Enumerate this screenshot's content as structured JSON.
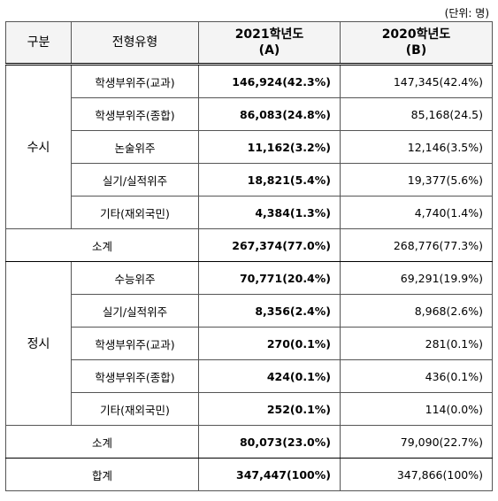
{
  "unit": "(단위: 명)",
  "table": {
    "header": {
      "category": "구분",
      "type": "전형유형",
      "col_a": [
        "2021학년도",
        "(A)"
      ],
      "col_b": [
        "2020학년도",
        "(B)"
      ]
    },
    "groups": [
      {
        "name": "수시",
        "rows": [
          {
            "type": "학생부위주(교과)",
            "a": "146,924(42.3%)",
            "b": "147,345(42.4%)"
          },
          {
            "type": "학생부위주(종합)",
            "a": "86,083(24.8%)",
            "b": "85,168(24.5)"
          },
          {
            "type": "논술위주",
            "a": "11,162(3.2%)",
            "b": "12,146(3.5%)"
          },
          {
            "type": "실기/실적위주",
            "a": "18,821(5.4%)",
            "b": "19,377(5.6%)"
          },
          {
            "type": "기타(재외국민)",
            "a": "4,384(1.3%)",
            "b": "4,740(1.4%)"
          }
        ],
        "subtotal": {
          "label": "소계",
          "a": "267,374(77.0%)",
          "b": "268,776(77.3%)"
        }
      },
      {
        "name": "정시",
        "rows": [
          {
            "type": "수능위주",
            "a": "70,771(20.4%)",
            "b": "69,291(19.9%)"
          },
          {
            "type": "실기/실적위주",
            "a": "8,356(2.4%)",
            "b": "8,968(2.6%)"
          },
          {
            "type": "학생부위주(교과)",
            "a": "270(0.1%)",
            "b": "281(0.1%)"
          },
          {
            "type": "학생부위주(종합)",
            "a": "424(0.1%)",
            "b": "436(0.1%)"
          },
          {
            "type": "기타(재외국민)",
            "a": "252(0.1%)",
            "b": "114(0.0%)"
          }
        ],
        "subtotal": {
          "label": "소계",
          "a": "80,073(23.0%)",
          "b": "79,090(22.7%)"
        }
      }
    ],
    "total": {
      "label": "합계",
      "a": "347,447(100%)",
      "b": "347,866(100%)"
    }
  }
}
